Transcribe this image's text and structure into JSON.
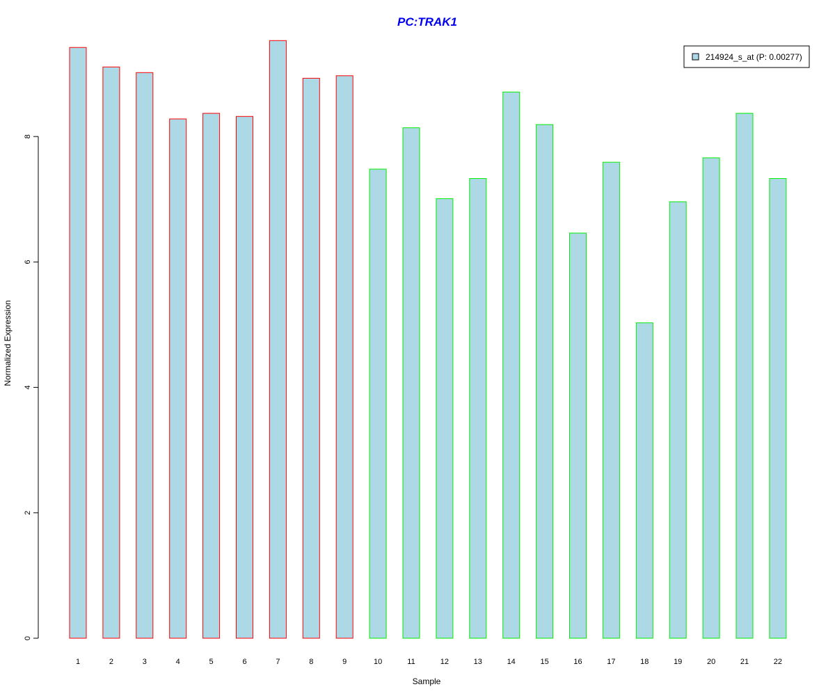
{
  "chart_data": {
    "type": "bar",
    "title": "PC:TRAK1",
    "xlabel": "Sample",
    "ylabel": "Normalized Expression",
    "categories": [
      "1",
      "2",
      "3",
      "4",
      "5",
      "6",
      "7",
      "8",
      "9",
      "10",
      "11",
      "12",
      "13",
      "14",
      "15",
      "16",
      "17",
      "18",
      "19",
      "20",
      "21",
      "22"
    ],
    "values": [
      9.42,
      9.11,
      9.02,
      8.28,
      8.37,
      8.32,
      9.53,
      8.93,
      8.97,
      7.48,
      8.14,
      7.01,
      7.33,
      8.71,
      8.19,
      6.46,
      7.59,
      5.03,
      6.96,
      7.66,
      8.37,
      7.33
    ],
    "yticks": [
      0,
      2,
      4,
      6,
      8
    ],
    "ylim": [
      0,
      9.6
    ],
    "legend": {
      "entries": [
        "214924_s_at (P: 0.00277)"
      ],
      "position": "top-right"
    },
    "grid": false,
    "colors": {
      "title": "#0000ee",
      "bar_fill": "#add8e6",
      "group1_border": "#ff0000",
      "group2_border": "#00ee00",
      "group1_count": 9
    }
  }
}
